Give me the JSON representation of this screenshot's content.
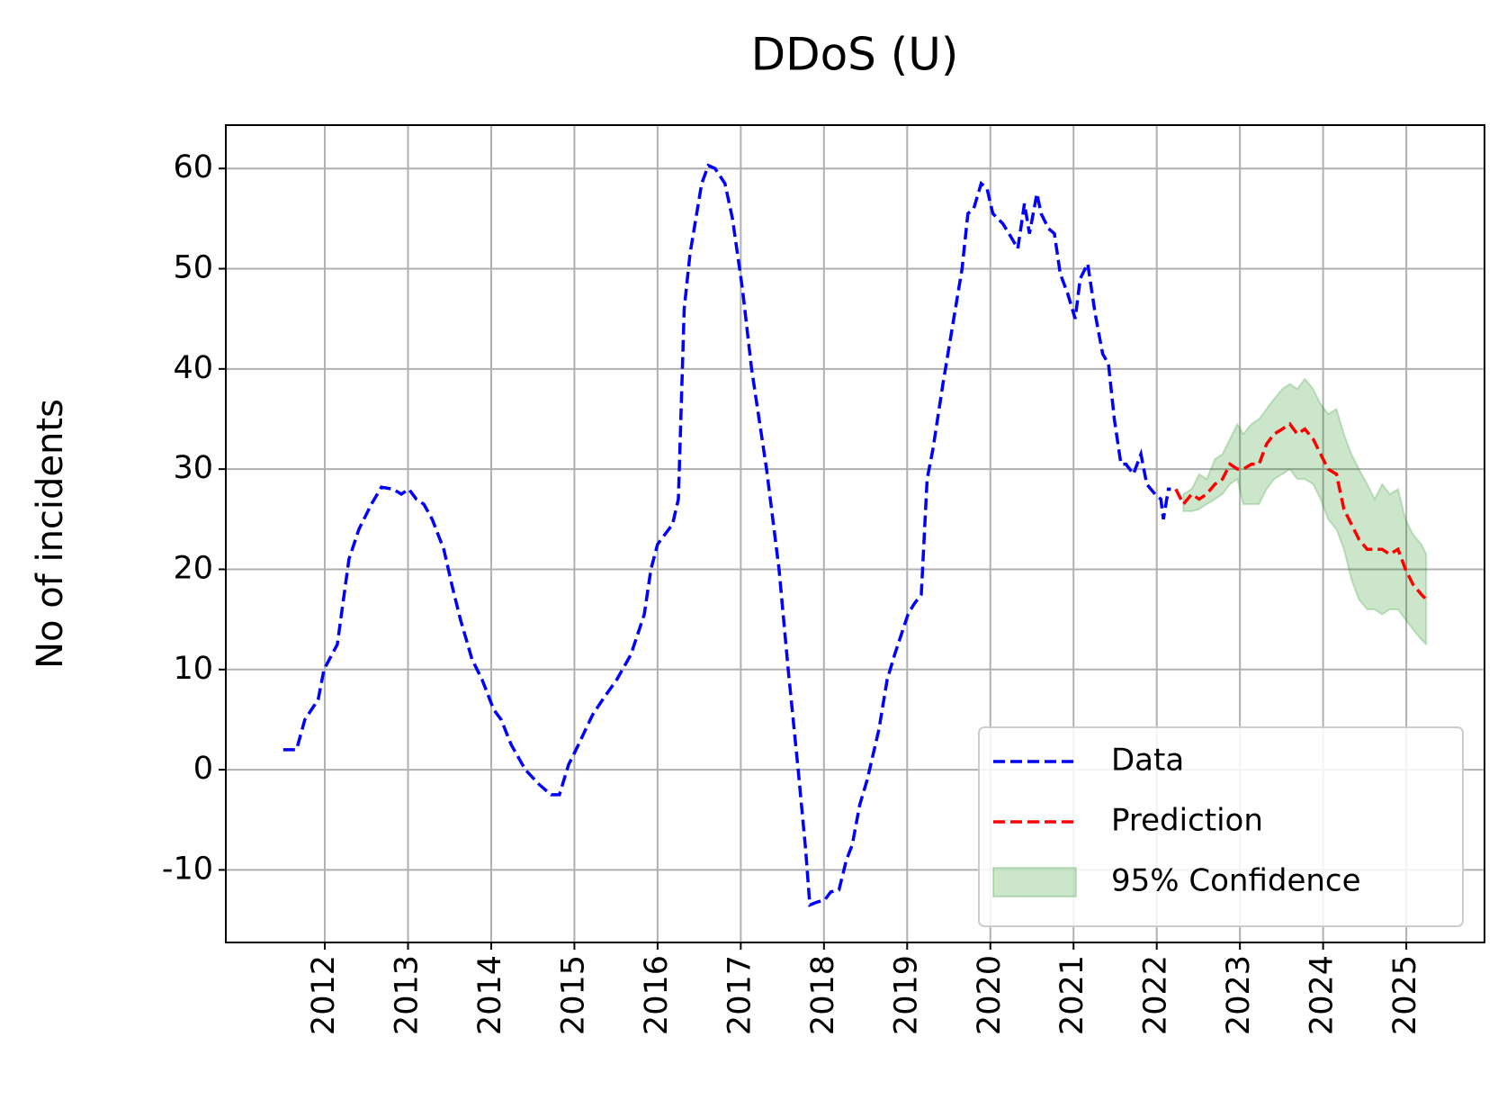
{
  "chart_data": {
    "type": "line",
    "title": "DDoS (U)",
    "y_label": "No of incidents",
    "xlim": [
      2010.81,
      2025.94
    ],
    "xticks": [
      2012,
      2013,
      2014,
      2015,
      2016,
      2017,
      2018,
      2019,
      2020,
      2021,
      2022,
      2023,
      2024,
      2025
    ],
    "ylim": [
      -17.24,
      64.33
    ],
    "yticks": [
      -10,
      0,
      10,
      20,
      30,
      40,
      50,
      60
    ],
    "grid": true,
    "legend_loc": "lower right",
    "series": [
      {
        "name": "Data",
        "type": "line",
        "color": "#0000ff",
        "dash": true,
        "x": [
          2011.5,
          2011.66,
          2011.76,
          2011.92,
          2011.99,
          2012.15,
          2012.29,
          2012.41,
          2012.56,
          2012.68,
          2012.82,
          2012.92,
          2013.01,
          2013.1,
          2013.19,
          2013.29,
          2013.43,
          2013.54,
          2013.63,
          2013.77,
          2013.89,
          2014.03,
          2014.12,
          2014.24,
          2014.41,
          2014.58,
          2014.72,
          2014.82,
          2014.93,
          2015.02,
          2015.22,
          2015.34,
          2015.51,
          2015.68,
          2015.84,
          2015.92,
          2016.0,
          2016.09,
          2016.18,
          2016.25,
          2016.32,
          2016.39,
          2016.46,
          2016.53,
          2016.61,
          2016.69,
          2016.81,
          2016.9,
          2017.02,
          2017.13,
          2017.31,
          2017.46,
          2017.57,
          2017.69,
          2017.78,
          2017.83,
          2017.92,
          2018.01,
          2018.08,
          2018.18,
          2018.27,
          2018.34,
          2018.43,
          2018.52,
          2018.66,
          2018.76,
          2018.85,
          2019.01,
          2019.08,
          2019.17,
          2019.24,
          2019.31,
          2019.43,
          2019.54,
          2019.66,
          2019.73,
          2019.8,
          2019.89,
          2019.96,
          2020.03,
          2020.15,
          2020.26,
          2020.33,
          2020.41,
          2020.47,
          2020.56,
          2020.61,
          2020.7,
          2020.77,
          2020.84,
          2020.93,
          2021.02,
          2021.08,
          2021.17,
          2021.26,
          2021.35,
          2021.42,
          2021.49,
          2021.57,
          2021.63,
          2021.72,
          2021.81,
          2021.88,
          2021.98,
          2022.05,
          2022.08,
          2022.14,
          2022.17
        ],
        "values": [
          2,
          2,
          5,
          7,
          10,
          12.5,
          21,
          24,
          26.5,
          28.2,
          28,
          27.5,
          28,
          27,
          26.5,
          25,
          22,
          18,
          15,
          11,
          9,
          6,
          5,
          2.5,
          0,
          -1.5,
          -2.5,
          -2.5,
          0.5,
          2,
          5.5,
          7,
          9,
          11.5,
          15.5,
          20,
          22.5,
          23.5,
          24.5,
          27,
          46,
          51.5,
          55,
          58.5,
          60.3,
          60,
          58.5,
          55,
          48,
          40,
          30,
          20,
          10,
          0,
          -8,
          -13.5,
          -13.2,
          -13,
          -12.2,
          -12,
          -9,
          -7.5,
          -3.5,
          -1,
          4,
          9,
          11.5,
          15.5,
          16.5,
          17.5,
          29,
          32,
          38.5,
          44,
          50,
          55.5,
          56,
          58.5,
          58,
          55.5,
          54.5,
          53,
          52,
          56.5,
          53.5,
          57.5,
          55.5,
          54,
          53.5,
          49.5,
          47.5,
          45,
          49,
          50.5,
          45.5,
          41.5,
          40.5,
          35,
          30.5,
          30.5,
          29.5,
          31.5,
          28.5,
          27.5,
          27,
          25,
          28,
          28
        ]
      },
      {
        "name": "Prediction",
        "type": "line",
        "color": "#ff0000",
        "dash": true,
        "x": [
          2022.23,
          2022.32,
          2022.42,
          2022.51,
          2022.6,
          2022.7,
          2022.79,
          2022.88,
          2022.97,
          2023.04,
          2023.14,
          2023.23,
          2023.32,
          2023.41,
          2023.51,
          2023.6,
          2023.69,
          2023.78,
          2023.88,
          2023.97,
          2024.06,
          2024.16,
          2024.25,
          2024.34,
          2024.43,
          2024.53,
          2024.62,
          2024.71,
          2024.8,
          2024.9,
          2024.99,
          2025.08,
          2025.18,
          2025.24
        ],
        "values": [
          28,
          26.5,
          27.5,
          27,
          27.5,
          28.5,
          29,
          30.5,
          30,
          30,
          30.5,
          30.5,
          32.5,
          33.5,
          34,
          34.5,
          33.5,
          34,
          33,
          31.5,
          30,
          29.5,
          26,
          24.5,
          23,
          22,
          22,
          22,
          21.5,
          22,
          20,
          18.5,
          17.5,
          17
        ]
      },
      {
        "name": "95% Confidence",
        "type": "band",
        "color": "#008000",
        "x": [
          2022.32,
          2022.42,
          2022.51,
          2022.6,
          2022.7,
          2022.79,
          2022.88,
          2022.97,
          2023.04,
          2023.14,
          2023.23,
          2023.32,
          2023.41,
          2023.51,
          2023.6,
          2023.69,
          2023.78,
          2023.88,
          2023.97,
          2024.06,
          2024.16,
          2024.25,
          2024.34,
          2024.43,
          2024.53,
          2024.62,
          2024.71,
          2024.8,
          2024.9,
          2024.99,
          2025.08,
          2025.18,
          2025.24
        ],
        "lower": [
          25.8,
          25.8,
          26,
          26.5,
          27,
          27.5,
          28.5,
          29,
          26.5,
          26.5,
          26.5,
          28,
          29,
          29.5,
          30,
          29,
          29,
          28.5,
          27,
          25,
          24,
          22,
          19,
          17,
          16,
          16,
          15.5,
          16,
          16,
          15,
          14,
          13,
          12.5
        ],
        "upper": [
          27.5,
          28,
          29.5,
          29,
          31,
          31.5,
          33,
          34.5,
          33.5,
          34.5,
          35,
          36,
          37,
          38,
          38.5,
          38,
          39,
          38,
          36.5,
          35.5,
          36,
          33.5,
          31.5,
          30,
          28.5,
          27,
          28.5,
          27.5,
          28,
          25,
          23.5,
          22.5,
          21.5
        ]
      }
    ]
  }
}
